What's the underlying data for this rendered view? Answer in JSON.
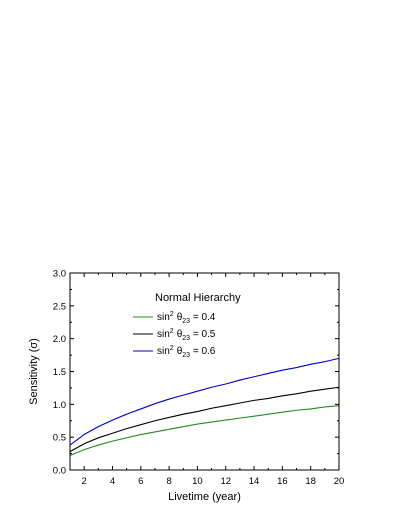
{
  "chart_data": {
    "type": "line",
    "title": "",
    "xlabel": "Livetime (year)",
    "ylabel": "Sensitivity (σ)",
    "xlim": [
      1,
      20
    ],
    "ylim": [
      0.0,
      3.0
    ],
    "xticks": [
      2,
      4,
      6,
      8,
      10,
      12,
      14,
      16,
      18,
      20
    ],
    "yticks": [
      "0.0",
      "0.5",
      "1.0",
      "1.5",
      "2.0",
      "2.5",
      "3.0"
    ],
    "grid": false,
    "legend": {
      "title": "Normal Hierarchy",
      "placement": "upper-center"
    },
    "x": [
      1,
      2,
      3,
      4,
      5,
      6,
      7,
      8,
      9,
      10,
      11,
      12,
      13,
      14,
      15,
      16,
      17,
      18,
      19,
      20
    ],
    "series": [
      {
        "name_prefix": "sin",
        "name_sup": "2",
        "name_theta": "θ",
        "name_sub": "23",
        "name_suffix": " = 0.4",
        "color": "#228B22",
        "values": [
          0.22,
          0.31,
          0.38,
          0.44,
          0.49,
          0.54,
          0.58,
          0.62,
          0.66,
          0.7,
          0.73,
          0.76,
          0.79,
          0.82,
          0.85,
          0.88,
          0.91,
          0.93,
          0.96,
          0.98
        ]
      },
      {
        "name_prefix": "sin",
        "name_sup": "2",
        "name_theta": "θ",
        "name_sub": "23",
        "name_suffix": " = 0.5",
        "color": "#000000",
        "values": [
          0.28,
          0.4,
          0.49,
          0.56,
          0.63,
          0.69,
          0.75,
          0.8,
          0.85,
          0.89,
          0.94,
          0.98,
          1.02,
          1.06,
          1.09,
          1.13,
          1.16,
          1.2,
          1.23,
          1.26
        ]
      },
      {
        "name_prefix": "sin",
        "name_sup": "2",
        "name_theta": "θ",
        "name_sub": "23",
        "name_suffix": " = 0.6",
        "color": "#0000CD",
        "values": [
          0.38,
          0.54,
          0.66,
          0.76,
          0.85,
          0.93,
          1.01,
          1.08,
          1.14,
          1.2,
          1.26,
          1.31,
          1.37,
          1.42,
          1.47,
          1.52,
          1.56,
          1.61,
          1.65,
          1.7
        ]
      }
    ]
  }
}
